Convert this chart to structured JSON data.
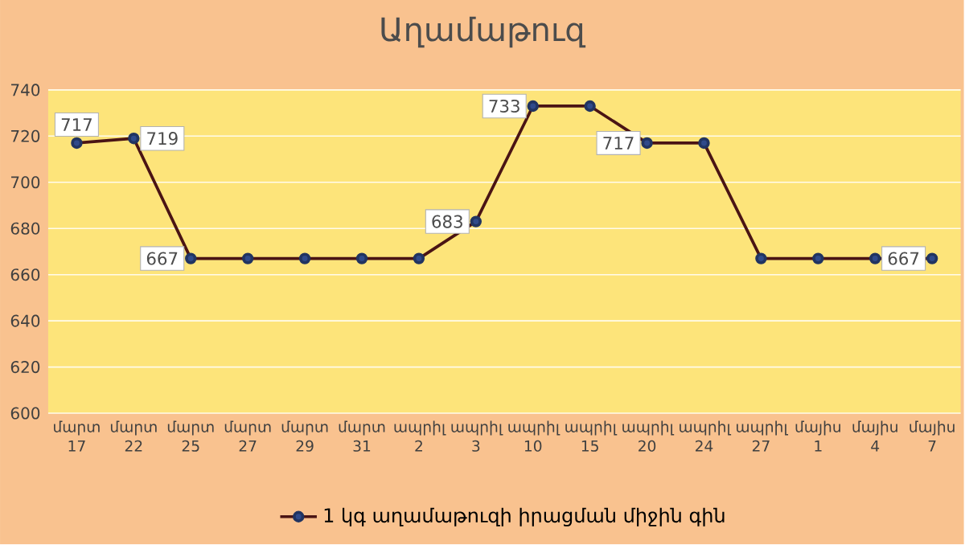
{
  "chart_data": {
    "type": "line",
    "title": "Աղամաթուզ",
    "categories": [
      "մարտ 17",
      "մարտ 22",
      "մարտ 25",
      "մարտ 27",
      "մարտ 29",
      "մարտ 31",
      "ապրիլ 2",
      "ապրիլ 3",
      "ապրիլ 10",
      "ապրիլ 15",
      "ապրիլ 20",
      "ապրիլ 24",
      "ապրիլ 27",
      "մայիս 1",
      "մայիս 4",
      "մայիս 7"
    ],
    "series": [
      {
        "name": "1 կգ աղամաթուզի իրացման միջին գին",
        "color": "#4a1414",
        "values": [
          717,
          719,
          667,
          667,
          667,
          667,
          667,
          683,
          733,
          733,
          717,
          717,
          667,
          667,
          667,
          667
        ],
        "value_labels": [
          "717",
          "719",
          "667",
          null,
          null,
          null,
          null,
          "683",
          "733",
          null,
          "717",
          null,
          null,
          null,
          null,
          "667"
        ]
      }
    ],
    "ylim": [
      600,
      740
    ],
    "yticks": [
      600,
      620,
      640,
      660,
      680,
      700,
      720,
      740
    ],
    "grid": "y",
    "legend": "bottom",
    "marker": "circle",
    "line_style": "solid"
  }
}
